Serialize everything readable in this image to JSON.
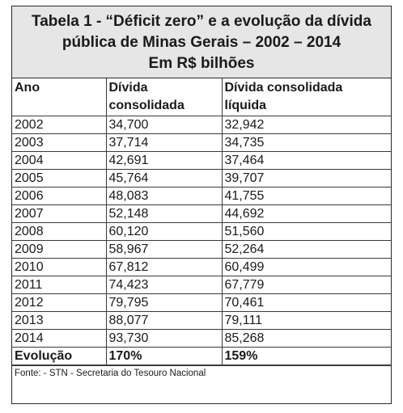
{
  "title": {
    "line1": "Tabela 1 - “Déficit zero” e a evolução da dívida",
    "line2": "pública de Minas Gerais – 2002 – 2014",
    "line3": "Em R$ bilhões"
  },
  "headers": {
    "year": "Ano",
    "debt_line1": "Dívida",
    "debt_line2": "consolidada",
    "net_debt_line1": "Dívida consolidada",
    "net_debt_line2": "líquida"
  },
  "rows": [
    {
      "year": "2002",
      "debt": "34,700",
      "net_debt": "32,942"
    },
    {
      "year": "2003",
      "debt": "37,714",
      "net_debt": "34,735"
    },
    {
      "year": "2004",
      "debt": "42,691",
      "net_debt": "37,464"
    },
    {
      "year": "2005",
      "debt": "45,764",
      "net_debt": "39,707"
    },
    {
      "year": "2006",
      "debt": "48,083",
      "net_debt": "41,755"
    },
    {
      "year": "2007",
      "debt": "52,148",
      "net_debt": "44,692"
    },
    {
      "year": "2008",
      "debt": "60,120",
      "net_debt": "51,560"
    },
    {
      "year": "2009",
      "debt": "58,967",
      "net_debt": "52,264"
    },
    {
      "year": "2010",
      "debt": "67,812",
      "net_debt": "60,499"
    },
    {
      "year": "2011",
      "debt": "74,423",
      "net_debt": "67,779"
    },
    {
      "year": "2012",
      "debt": "79,795",
      "net_debt": "70,461"
    },
    {
      "year": "2013",
      "debt": "88,077",
      "net_debt": "79,111"
    },
    {
      "year": "2014",
      "debt": "93,730",
      "net_debt": "85,268"
    }
  ],
  "summary": {
    "label": "Evolução",
    "debt": "170%",
    "net_debt": "159%"
  },
  "source": "Fonte: - STN - Secretaria do Tesouro Nacional"
}
